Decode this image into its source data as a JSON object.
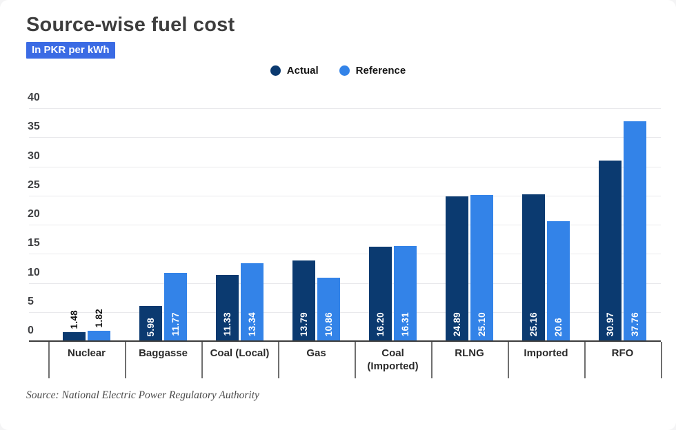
{
  "header": {
    "title": "Source-wise fuel cost",
    "unit_badge": "In PKR per kWh"
  },
  "legend": {
    "items": [
      {
        "label": "Actual",
        "color": "#0b3a70"
      },
      {
        "label": "Reference",
        "color": "#3383e8"
      }
    ]
  },
  "footer": {
    "source": "Source: National Electric Power Regulatory Authority"
  },
  "colors": {
    "badge_bg": "#3b6be4",
    "badge_text": "#ffffff",
    "title_text": "#3d3d3d",
    "actual_bar": "#0b3a70",
    "reference_bar": "#3383e8",
    "axis_text": "#3f4043",
    "category_text": "#2b2b2b",
    "gridline": "#e9e9ec",
    "axis_line": "#3b3b3b",
    "tick_line": "#6f6f6f",
    "bar_label_inside": "#ffffff",
    "bar_label_outside": "#111111",
    "source_text": "#4a4a4a",
    "background": "#ffffff"
  },
  "chart_data": {
    "type": "bar",
    "title": "Source-wise fuel cost",
    "unit": "In PKR per kWh",
    "categories": [
      "Nuclear",
      "Baggasse",
      "Coal (Local)",
      "Gas",
      "Coal (Imported)",
      "RLNG",
      "Imported",
      "RFO"
    ],
    "series": [
      {
        "name": "Actual",
        "color": "#0b3a70",
        "values": [
          1.48,
          5.98,
          11.33,
          13.79,
          16.2,
          24.89,
          25.16,
          30.97
        ],
        "labels": [
          "1.48",
          "5.98",
          "11.33",
          "13.79",
          "16.20",
          "24.89",
          "25.16",
          "30.97"
        ]
      },
      {
        "name": "Reference",
        "color": "#3383e8",
        "values": [
          1.82,
          11.77,
          13.34,
          10.86,
          16.31,
          25.1,
          20.6,
          37.76
        ],
        "labels": [
          "1.82",
          "11.77",
          "13.34",
          "10.86",
          "16.31",
          "25.10",
          "20.6",
          "37.76"
        ]
      }
    ],
    "xlabel": "",
    "ylabel": "",
    "ylim": [
      0,
      40
    ],
    "ytick_step": 5,
    "grid": true,
    "legend_position": "top-center",
    "source": "Source: National Electric Power Regulatory Authority"
  }
}
